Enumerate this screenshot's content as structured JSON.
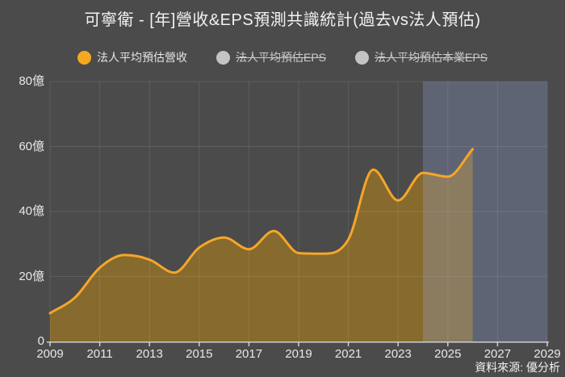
{
  "header": {
    "title": "可寧衛 - [年]營收&EPS預測共識統計(過去vs法人預估)"
  },
  "legend": {
    "items": [
      {
        "label": "法人平均預估營收",
        "color": "#f7a821",
        "active": true
      },
      {
        "label": "法人平均預估EPS",
        "color": "#c4c4c4",
        "active": false
      },
      {
        "label": "法人平均預估本業EPS",
        "color": "#c4c4c4",
        "active": false
      }
    ]
  },
  "source": {
    "label": "資料來源: 優分析"
  },
  "chart_data": {
    "type": "area",
    "title": "可寧衛 - [年]營收&EPS預測共識統計(過去vs法人預估)",
    "unit": "億",
    "xlim": [
      2009,
      2029
    ],
    "ylim": [
      0,
      80
    ],
    "x_ticks": [
      2009,
      2011,
      2013,
      2015,
      2017,
      2019,
      2021,
      2023,
      2025,
      2027,
      2029
    ],
    "y_ticks": [
      {
        "v": 0,
        "label": "0"
      },
      {
        "v": 20,
        "label": "20億"
      },
      {
        "v": 40,
        "label": "40億"
      },
      {
        "v": 60,
        "label": "60億"
      },
      {
        "v": 80,
        "label": "80億"
      }
    ],
    "series": [
      {
        "name": "法人平均預估營收",
        "x": [
          2009,
          2010,
          2011,
          2012,
          2013,
          2014,
          2015,
          2016,
          2017,
          2018,
          2019,
          2020,
          2021,
          2022,
          2023,
          2024,
          2025,
          2026
        ],
        "values": [
          8.7,
          13.5,
          22.7,
          26.6,
          25.2,
          21.2,
          28.9,
          32.0,
          28.4,
          34.0,
          27.2,
          27.0,
          31.4,
          52.9,
          43.4,
          51.9,
          50.7,
          59.2
        ]
      }
    ],
    "hidden_series": [
      "法人平均預估EPS",
      "法人平均預估本業EPS"
    ],
    "forecast_start": 2024,
    "forecast_region_end": 2029,
    "legend_position": "top",
    "grid": true,
    "colors": {
      "background": "#4b4b4b",
      "line": "#f5a62a",
      "fill": "#876a2d",
      "forecast_overlay": "rgba(150,170,232,0.27)",
      "grid": "rgba(255,255,255,0.10)",
      "axis": "#cfcfcf",
      "tick_text": "#e8e8e8"
    }
  }
}
